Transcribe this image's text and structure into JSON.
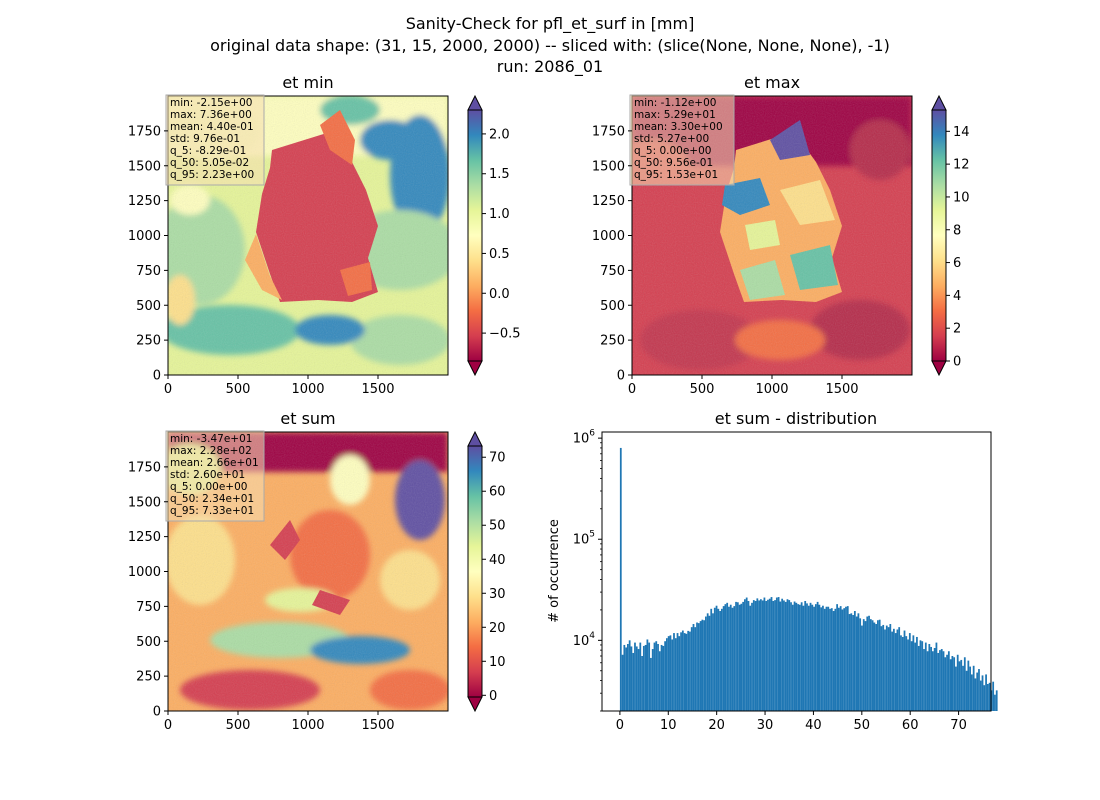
{
  "figure": {
    "title_lines": [
      "Sanity-Check for pfl_et_surf in [mm]",
      "original data shape: (31, 15, 2000, 2000) -- sliced with: (slice(None, None, None), -1)",
      "run: 2086_01"
    ]
  },
  "palette": {
    "spectral_r": [
      "#9e0142",
      "#d53e4f",
      "#f46d43",
      "#fdae61",
      "#fee08b",
      "#ffffbf",
      "#e6f598",
      "#abdda4",
      "#66c2a5",
      "#3288bd",
      "#5e4fa2"
    ],
    "hist_color": "#1f77b4",
    "stats_box_bg": "#f5deb3"
  },
  "chart_data": [
    {
      "type": "heatmap",
      "title": "et min",
      "xlim": [
        0,
        2000
      ],
      "ylim": [
        0,
        2000
      ],
      "x_ticks": [
        0,
        500,
        1000,
        1500
      ],
      "y_ticks": [
        0,
        250,
        500,
        750,
        1000,
        1250,
        1500,
        1750
      ],
      "colorbar": {
        "range": [
          -0.85,
          2.3
        ],
        "ticks": [
          -0.5,
          0.0,
          0.5,
          1.0,
          1.5,
          2.0
        ],
        "tick_labels": [
          "−0.5",
          "0.0",
          "0.5",
          "1.0",
          "1.5",
          "2.0"
        ],
        "extend": "both"
      },
      "stats": [
        "min: -2.15e+00",
        "max: 7.36e+00",
        "mean: 4.40e-01",
        "std: 9.76e-01",
        "q_5: -8.29e-01",
        "q_50: 5.05e-02",
        "q_95: 2.23e+00"
      ]
    },
    {
      "type": "heatmap",
      "title": "et max",
      "xlim": [
        0,
        2000
      ],
      "ylim": [
        0,
        2000
      ],
      "x_ticks": [
        0,
        500,
        1000,
        1500
      ],
      "y_ticks": [
        0,
        250,
        500,
        750,
        1000,
        1250,
        1500,
        1750
      ],
      "colorbar": {
        "range": [
          0,
          15.3
        ],
        "ticks": [
          0,
          2,
          4,
          6,
          8,
          10,
          12,
          14
        ],
        "tick_labels": [
          "0",
          "2",
          "4",
          "6",
          "8",
          "10",
          "12",
          "14"
        ],
        "extend": "both"
      },
      "stats": [
        "min: -1.12e+00",
        "max: 5.29e+01",
        "mean: 3.30e+00",
        "std: 5.27e+00",
        "q_5: 0.00e+00",
        "q_50: 9.56e-01",
        "q_95: 1.53e+01"
      ]
    },
    {
      "type": "heatmap",
      "title": "et sum",
      "xlim": [
        0,
        2000
      ],
      "ylim": [
        0,
        2000
      ],
      "x_ticks": [
        0,
        500,
        1000,
        1500
      ],
      "y_ticks": [
        0,
        250,
        500,
        750,
        1000,
        1250,
        1500,
        1750
      ],
      "colorbar": {
        "range": [
          -0.5,
          73.3
        ],
        "ticks": [
          0,
          10,
          20,
          30,
          40,
          50,
          60,
          70
        ],
        "tick_labels": [
          "0",
          "10",
          "20",
          "30",
          "40",
          "50",
          "60",
          "70"
        ],
        "extend": "both"
      },
      "stats": [
        "min: -3.47e+01",
        "max: 2.28e+02",
        "mean: 2.66e+01",
        "std: 2.60e+01",
        "q_5: 0.00e+00",
        "q_50: 2.34e+01",
        "q_95: 7.33e+01"
      ]
    },
    {
      "type": "bar",
      "title": "et sum - distribution",
      "ylabel": "# of occurrence",
      "xlim": [
        -3.7,
        76.7
      ],
      "ylim": [
        2000,
        1150000
      ],
      "yscale": "log",
      "x_ticks": [
        0,
        10,
        20,
        30,
        40,
        50,
        60,
        70
      ],
      "y_ticks": [
        10000,
        100000,
        1000000
      ],
      "y_tick_labels": [
        {
          "base": "10",
          "exp": "4"
        },
        {
          "base": "10",
          "exp": "5"
        },
        {
          "base": "10",
          "exp": "6"
        }
      ],
      "bin_start": 0,
      "bin_width": 0.3665,
      "values": [
        800000,
        7200,
        9000,
        8500,
        9200,
        10000,
        8700,
        7500,
        9500,
        8700,
        8200,
        9500,
        7000,
        8800,
        9000,
        10200,
        9500,
        6700,
        8200,
        9500,
        9800,
        9200,
        7800,
        9000,
        8800,
        9800,
        10500,
        11000,
        11200,
        10200,
        11800,
        10500,
        11800,
        11000,
        12000,
        12500,
        11800,
        11600,
        12400,
        12200,
        13500,
        14500,
        13500,
        15000,
        14800,
        15500,
        16000,
        15800,
        17200,
        18500,
        17500,
        20500,
        18500,
        21000,
        22000,
        20500,
        19500,
        20500,
        21800,
        22800,
        23500,
        21500,
        22500,
        21000,
        21800,
        24000,
        23800,
        22500,
        23000,
        24000,
        25500,
        26500,
        24500,
        22000,
        23500,
        25000,
        24500,
        26000,
        24800,
        25500,
        24800,
        26500,
        24500,
        25200,
        25800,
        26800,
        24500,
        25000,
        26500,
        26800,
        24200,
        25800,
        24800,
        24000,
        25500,
        25000,
        23800,
        22500,
        24200,
        23500,
        22800,
        22500,
        23800,
        22000,
        24500,
        23200,
        22000,
        23500,
        22500,
        21500,
        22800,
        24000,
        22500,
        21200,
        22000,
        20500,
        21500,
        21500,
        20500,
        20800,
        19500,
        20500,
        22800,
        21000,
        21800,
        20200,
        20800,
        21500,
        21800,
        18200,
        18500,
        17800,
        19500,
        17200,
        18500,
        16500,
        14000,
        16200,
        15500,
        17200,
        17500,
        16200,
        15800,
        15000,
        14500,
        15800,
        16000,
        13800,
        14200,
        12800,
        14000,
        13500,
        14500,
        12200,
        13000,
        11800,
        12800,
        13500,
        11200,
        10800,
        12500,
        11000,
        10200,
        11800,
        9800,
        11200,
        9500,
        10800,
        8800,
        10000,
        9800,
        8200,
        9500,
        7800,
        9200,
        8600,
        7800,
        8400,
        9500,
        7500,
        8000,
        8200,
        7800,
        6800,
        7200,
        7800,
        6500,
        7000,
        6800,
        5500,
        7200,
        6200,
        6400,
        5600,
        6800,
        5000,
        6300,
        5500,
        4600,
        5600,
        4200,
        4800,
        5200,
        4000,
        4500,
        3600,
        4600,
        3700,
        3800,
        3200,
        3900,
        2900,
        3200
      ]
    }
  ]
}
